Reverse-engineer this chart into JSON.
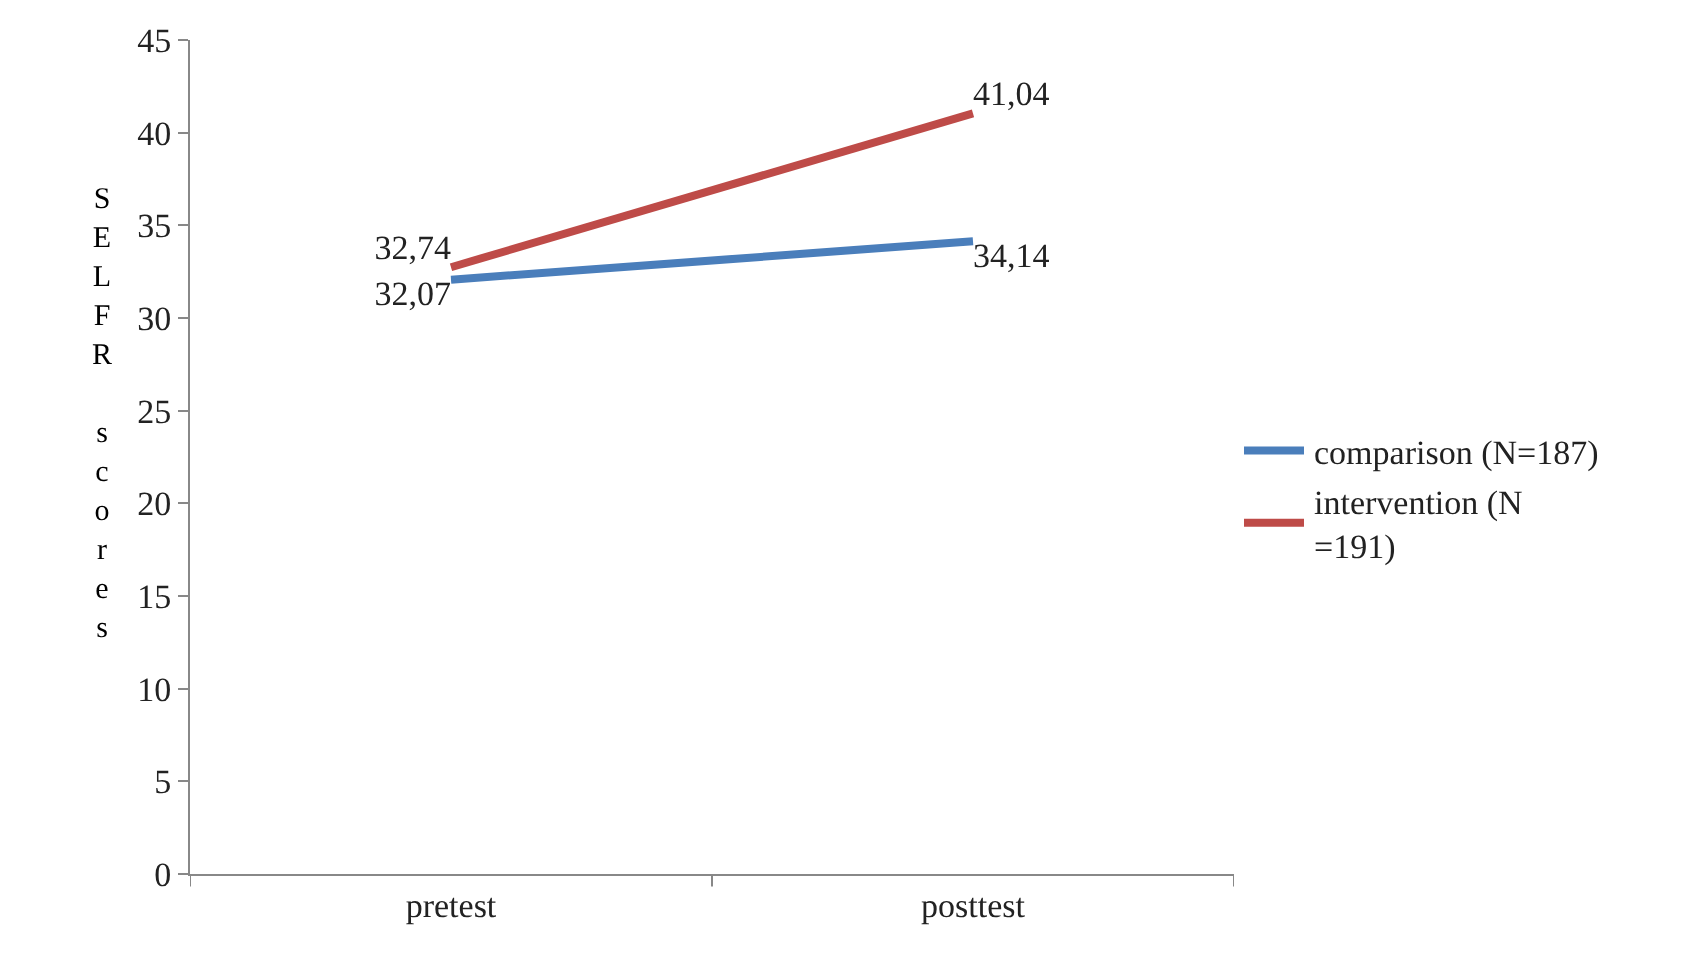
{
  "chart_data": {
    "type": "line",
    "ylabel": "SELFR scores",
    "categories": [
      "pretest",
      "posttest"
    ],
    "ylim": [
      0,
      45
    ],
    "yticks": [
      0,
      5,
      10,
      15,
      20,
      25,
      30,
      35,
      40,
      45
    ],
    "legend": "right",
    "marker": "none",
    "line_style": "solid",
    "series": [
      {
        "name": "comparison (N=187)",
        "color": "#4a7ebb",
        "values": [
          32.07,
          34.14
        ],
        "value_labels": [
          "32,07",
          "34,14"
        ]
      },
      {
        "name": "intervention (N =191)",
        "color": "#be4b48",
        "values": [
          32.74,
          41.04
        ],
        "value_labels": [
          "32,74",
          "41,04"
        ]
      }
    ]
  }
}
